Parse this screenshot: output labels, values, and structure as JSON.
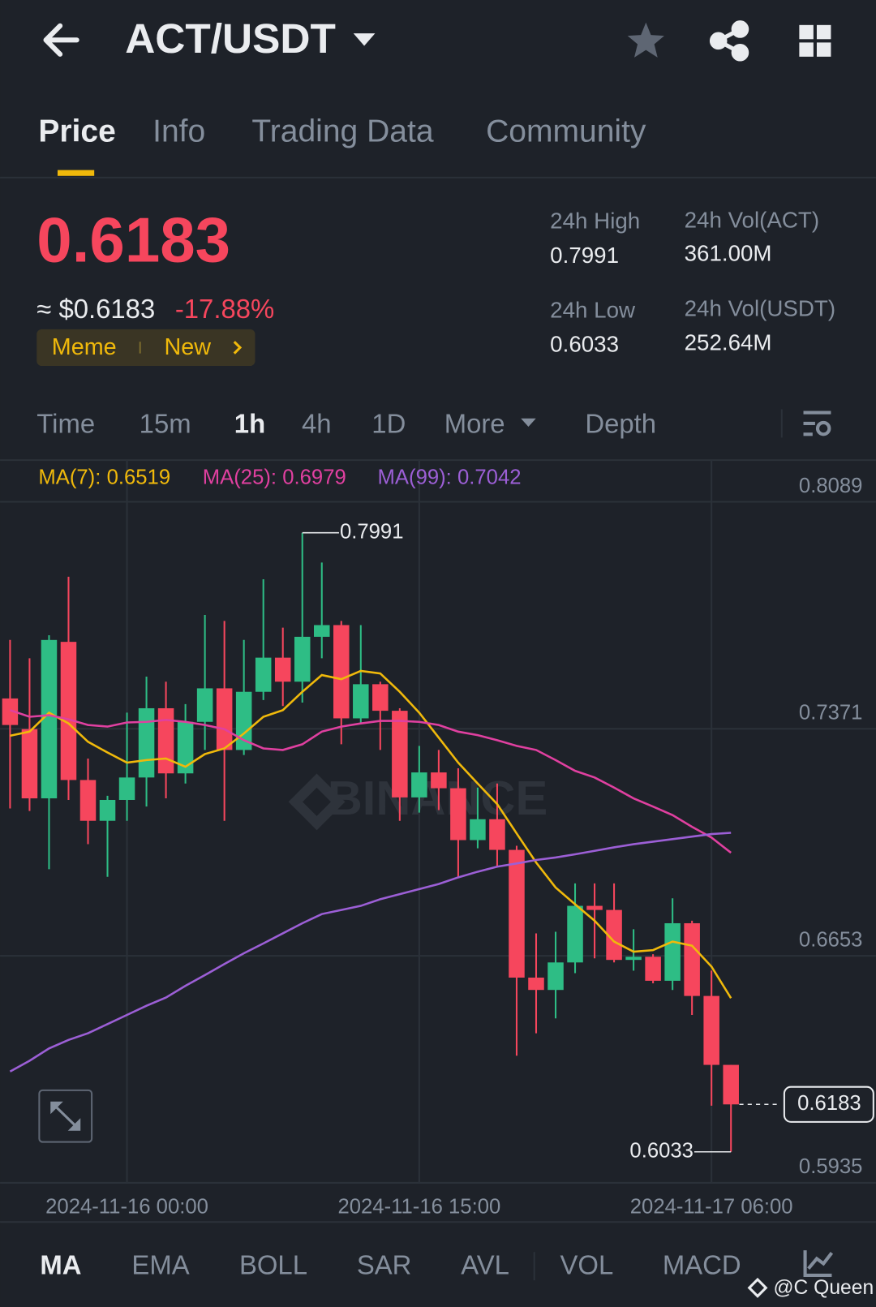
{
  "header": {
    "title": "ACT/USDT"
  },
  "tabs": [
    "Price",
    "Info",
    "Trading Data",
    "Community"
  ],
  "ticker": {
    "price": "0.6183",
    "usd": "≈ $0.6183",
    "change": "-17.88%",
    "tags": [
      "Meme",
      "New"
    ]
  },
  "stats": [
    {
      "label": "24h High",
      "value": "0.7991"
    },
    {
      "label": "24h Vol(ACT)",
      "value": "361.00M"
    },
    {
      "label": "24h Low",
      "value": "0.6033"
    },
    {
      "label": "24h Vol(USDT)",
      "value": "252.64M"
    }
  ],
  "intervals": [
    "Time",
    "15m",
    "1h",
    "4h",
    "1D",
    "More",
    "Depth"
  ],
  "chart_data": {
    "type": "candlestick",
    "watermark": "BINANCE",
    "categories": [
      null,
      null,
      null,
      null,
      null,
      null,
      "2024-11-16 00:00",
      null,
      null,
      null,
      null,
      null,
      null,
      null,
      null,
      null,
      null,
      null,
      null,
      null,
      null,
      "2024-11-16 15:00",
      null,
      null,
      null,
      null,
      null,
      null,
      null,
      null,
      null,
      null,
      null,
      null,
      null,
      null,
      "2024-11-17 06:00",
      null
    ],
    "open": [
      0.7467,
      0.737,
      0.7151,
      0.7646,
      0.7209,
      0.708,
      0.7146,
      0.7217,
      0.7436,
      0.723,
      0.7393,
      0.7499,
      0.7304,
      0.7488,
      0.7596,
      0.752,
      0.7662,
      0.7699,
      0.7404,
      0.7512,
      0.7428,
      0.7154,
      0.7233,
      0.7183,
      0.7019,
      0.7085,
      0.6988,
      0.6584,
      0.6545,
      0.6632,
      0.6811,
      0.6798,
      0.664,
      0.665,
      0.6574,
      0.6756,
      0.6526,
      0.6308
    ],
    "high": [
      0.7652,
      0.7594,
      0.7667,
      0.7852,
      0.7277,
      0.7159,
      0.7422,
      0.7536,
      0.752,
      0.7449,
      0.7731,
      0.7712,
      0.7652,
      0.7844,
      0.7691,
      0.7991,
      0.7897,
      0.7712,
      0.7699,
      0.752,
      0.7436,
      0.7317,
      0.7304,
      0.7246,
      0.7185,
      0.7198,
      0.7001,
      0.6724,
      0.6729,
      0.6882,
      0.6882,
      0.6882,
      0.6737,
      0.6658,
      0.6835,
      0.6764,
      0.6606,
      0.6308
    ],
    "low": [
      0.7119,
      0.7111,
      0.6927,
      0.7146,
      0.7006,
      0.6903,
      0.708,
      0.7125,
      0.7151,
      0.7198,
      0.7304,
      0.708,
      0.7288,
      0.7462,
      0.7443,
      0.7454,
      0.7594,
      0.7322,
      0.7391,
      0.7304,
      0.708,
      0.7106,
      0.7114,
      0.6903,
      0.6993,
      0.6935,
      0.6337,
      0.6408,
      0.6455,
      0.6598,
      0.6645,
      0.6632,
      0.6606,
      0.6566,
      0.6545,
      0.6466,
      0.6179,
      0.6033
    ],
    "close": [
      0.7383,
      0.7151,
      0.7652,
      0.7209,
      0.708,
      0.7146,
      0.7217,
      0.7436,
      0.723,
      0.7393,
      0.7499,
      0.7304,
      0.7488,
      0.7596,
      0.752,
      0.7662,
      0.7699,
      0.7404,
      0.7512,
      0.7428,
      0.7154,
      0.7233,
      0.7183,
      0.7019,
      0.7085,
      0.6988,
      0.6584,
      0.6545,
      0.6632,
      0.6811,
      0.6798,
      0.664,
      0.665,
      0.6574,
      0.6756,
      0.6526,
      0.6308,
      0.6183
    ],
    "up_color": "#2ebd85",
    "down_color": "#f6465d",
    "series": [
      {
        "name": "MA(7):",
        "color": "#f0b90b",
        "values": [
          0.7349,
          0.7362,
          0.7422,
          0.7388,
          0.733,
          0.7296,
          0.7264,
          0.7272,
          0.7277,
          0.7251,
          0.7291,
          0.7309,
          0.7356,
          0.7409,
          0.743,
          0.7488,
          0.7541,
          0.7528,
          0.7554,
          0.7546,
          0.7488,
          0.7422,
          0.7343,
          0.7264,
          0.7198,
          0.7133,
          0.704,
          0.6948,
          0.6869,
          0.6816,
          0.6764,
          0.6698,
          0.6666,
          0.6671,
          0.6698,
          0.6685,
          0.6619,
          0.6519
        ]
      },
      {
        "name": "MA(25):",
        "color": "#e040a0",
        "values": [
          0.743,
          0.7409,
          0.7414,
          0.7401,
          0.7383,
          0.7378,
          0.7391,
          0.7393,
          0.7399,
          0.7393,
          0.7383,
          0.737,
          0.7335,
          0.7309,
          0.7304,
          0.7322,
          0.7362,
          0.7378,
          0.7388,
          0.7396,
          0.7396,
          0.7393,
          0.7383,
          0.7362,
          0.7351,
          0.7335,
          0.7317,
          0.7304,
          0.7272,
          0.7238,
          0.7217,
          0.7185,
          0.7151,
          0.7125,
          0.7098,
          0.7061,
          0.7027,
          0.6979
        ]
      },
      {
        "name": "MA(99):",
        "color": "#9c5fd6",
        "values": [
          0.6287,
          0.6321,
          0.636,
          0.6387,
          0.6408,
          0.6437,
          0.6466,
          0.6495,
          0.6521,
          0.6558,
          0.6592,
          0.6627,
          0.6661,
          0.6692,
          0.6724,
          0.6756,
          0.6785,
          0.6798,
          0.6811,
          0.6832,
          0.6848,
          0.6864,
          0.688,
          0.6901,
          0.6919,
          0.6935,
          0.6945,
          0.6956,
          0.6964,
          0.6974,
          0.6985,
          0.6996,
          0.7006,
          0.7014,
          0.7022,
          0.703,
          0.7038,
          0.7042
        ]
      }
    ],
    "ylim": [
      0.5935,
      0.8089
    ],
    "yticks": [
      0.8089,
      0.7371,
      0.6653,
      0.5935
    ],
    "grid": true
  },
  "indicators": [
    "MA",
    "EMA",
    "BOLL",
    "SAR",
    "AVL",
    "VOL",
    "MACD"
  ],
  "credit": "@C Queen"
}
